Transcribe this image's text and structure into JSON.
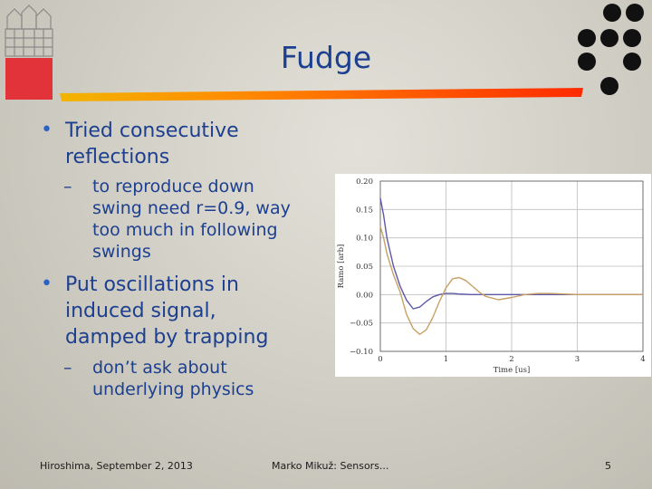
{
  "slide": {
    "title": "Fudge",
    "bullets": [
      {
        "text": "Tried consecutive reflections",
        "sub": [
          "to reproduce down swing need r=0.9, way too much in following swings"
        ]
      },
      {
        "text": "Put oscillations in induced signal, damped by trapping",
        "sub": [
          "don’t ask about underlying physics"
        ]
      }
    ],
    "bullet_lines": [
      [
        "Tried consecutive",
        "reflections"
      ],
      [
        "to reproduce down",
        "swing need r=0.9, way",
        "too much in following",
        "swings"
      ],
      [
        "Put oscillations in",
        "induced signal,",
        "damped by trapping"
      ],
      [
        "don’t ask about",
        "underlying physics"
      ]
    ],
    "bullet_marks": {
      "level1": "•",
      "level2": "–"
    }
  },
  "footer": {
    "left": "Hiroshima, September 2, 2013",
    "center": "Marko Mikuž: Sensors...",
    "page": "5"
  },
  "colors": {
    "title": "#1d3f8f",
    "accent_bar": "#ff2a00",
    "bullet": "#2a63c8",
    "dots": "#111111"
  },
  "chart_data": {
    "type": "line",
    "xlabel": "Time [us]",
    "ylabel": "Ramo [arb]",
    "xlim": [
      0,
      4
    ],
    "ylim": [
      -0.1,
      0.2
    ],
    "xticks": [
      0,
      1,
      2,
      3,
      4
    ],
    "yticks": [
      -0.1,
      -0.05,
      0.0,
      0.05,
      0.1,
      0.15,
      0.2
    ],
    "ytick_labels": [
      "−0.10",
      "−0.05",
      "0.00",
      "0.05",
      "0.10",
      "0.15",
      "0.20"
    ],
    "grid": true,
    "series": [
      {
        "color": "#5e58a8",
        "x": [
          0.0,
          0.05,
          0.1,
          0.2,
          0.3,
          0.4,
          0.5,
          0.6,
          0.7,
          0.8,
          0.9,
          1.0,
          1.1,
          1.2,
          1.4,
          1.6,
          1.8,
          2.0,
          2.5,
          3.0,
          3.5,
          4.0
        ],
        "y": [
          0.17,
          0.14,
          0.1,
          0.05,
          0.015,
          -0.01,
          -0.025,
          -0.022,
          -0.012,
          -0.004,
          0.0,
          0.002,
          0.002,
          0.001,
          0.0,
          0.0,
          0.0,
          0.0,
          0.0,
          0.0,
          0.0,
          0.0
        ]
      },
      {
        "color": "#c8a064",
        "x": [
          0.0,
          0.05,
          0.1,
          0.2,
          0.3,
          0.4,
          0.5,
          0.6,
          0.7,
          0.8,
          0.9,
          1.0,
          1.1,
          1.2,
          1.3,
          1.4,
          1.5,
          1.6,
          1.8,
          2.0,
          2.2,
          2.4,
          2.6,
          2.8,
          3.0,
          3.5,
          4.0
        ],
        "y": [
          0.12,
          0.1,
          0.072,
          0.035,
          0.005,
          -0.035,
          -0.06,
          -0.07,
          -0.062,
          -0.04,
          -0.012,
          0.012,
          0.028,
          0.03,
          0.025,
          0.015,
          0.005,
          -0.003,
          -0.009,
          -0.005,
          0.0,
          0.002,
          0.002,
          0.001,
          0.0,
          0.0,
          0.0
        ]
      }
    ]
  }
}
